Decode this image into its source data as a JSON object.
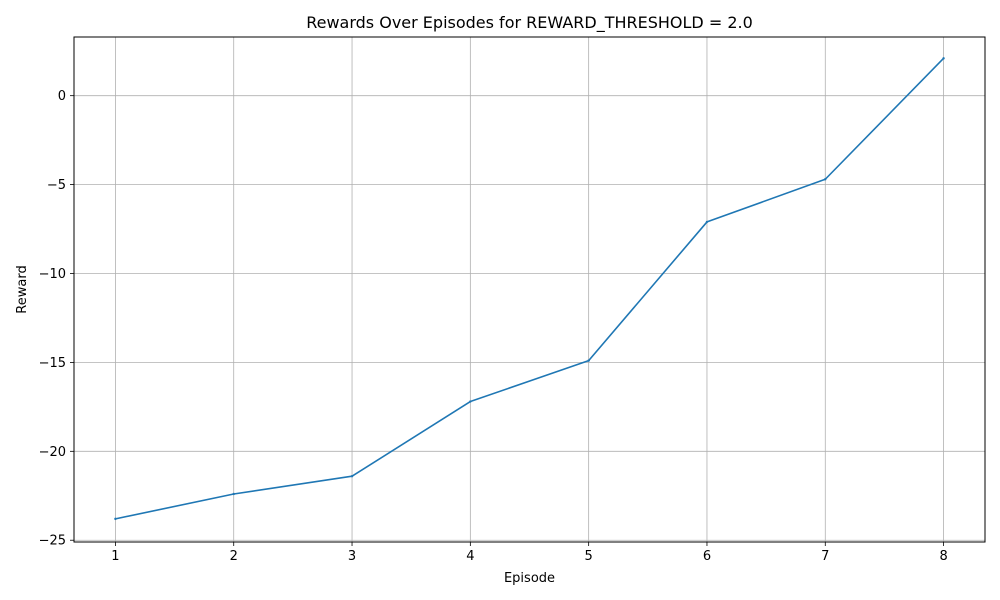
{
  "chart_data": {
    "type": "line",
    "title": "Rewards Over Episodes for REWARD_THRESHOLD = 2.0",
    "xlabel": "Episode",
    "ylabel": "Reward",
    "x": [
      1,
      2,
      3,
      4,
      5,
      6,
      7,
      8
    ],
    "x_ticks": [
      "1",
      "2",
      "3",
      "4",
      "5",
      "6",
      "7",
      "8"
    ],
    "y_ticks": [
      "0",
      "−5",
      "−10",
      "−15",
      "−20",
      "−25"
    ],
    "y_tick_values": [
      0,
      -5,
      -10,
      -15,
      -20,
      -25
    ],
    "xlim": [
      0.65,
      8.35
    ],
    "ylim": [
      -25.1,
      3.3
    ],
    "grid": true,
    "series": [
      {
        "values": [
          -23.8,
          -22.4,
          -21.4,
          -17.2,
          -14.9,
          -7.1,
          -4.7,
          2.1
        ],
        "color": "#1f77b4"
      }
    ]
  }
}
